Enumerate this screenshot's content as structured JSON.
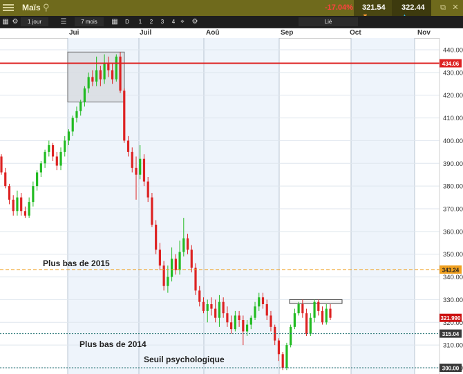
{
  "header": {
    "title": "Maïs",
    "search_icon": "search-icon",
    "change_pct": "-17.04%",
    "sell_price": "321.54",
    "buy_price": "322.44",
    "colors": {
      "bar": "#6f6a1c",
      "negative": "#ff4040"
    }
  },
  "toolbar": {
    "interval": "1 jour",
    "range": "7 mois",
    "btn_d": "D",
    "btn_1": "1",
    "btn_2": "2",
    "btn_3": "3",
    "btn_4": "4",
    "linked": "Lié"
  },
  "chart_data": {
    "type": "candlestick",
    "months": [
      "Jui",
      "Juil",
      "Aoû",
      "Sep",
      "Oct",
      "Nov"
    ],
    "y_ticks": [
      "440.00",
      "430.00",
      "420.00",
      "410.00",
      "400.00",
      "390.00",
      "380.00",
      "370.00",
      "360.00",
      "350.00",
      "340.00",
      "330.00",
      "320.00",
      "310.00",
      "300.00"
    ],
    "ylim": [
      298,
      442
    ],
    "grid": true,
    "colors": {
      "up": "#22bb22",
      "down": "#dd2222",
      "resistance": "#dd2222",
      "level_2015": "#f0a020",
      "support": "#207070"
    },
    "levels": [
      {
        "value": 434.06,
        "label": "434.06",
        "style": "resistance"
      },
      {
        "value": 343.24,
        "label": "343.24",
        "style": "level_2015"
      },
      {
        "value": 321.99,
        "label": "321.990",
        "style": "current"
      },
      {
        "value": 315.04,
        "label": "315.04",
        "style": "support"
      },
      {
        "value": 300.0,
        "label": "300.00",
        "style": "support"
      }
    ],
    "annotations": {
      "low_2015": "Plus bas de 2015",
      "low_2014": "Plus bas de 2014",
      "psych": "Seuil psychologique"
    },
    "candles": [
      [
        393,
        386,
        394,
        385
      ],
      [
        386,
        380,
        388,
        379
      ],
      [
        380,
        374,
        381,
        372
      ],
      [
        374,
        369,
        376,
        367
      ],
      [
        369,
        375,
        378,
        367
      ],
      [
        375,
        369,
        377,
        367
      ],
      [
        369,
        367,
        371,
        366
      ],
      [
        367,
        373,
        375,
        366
      ],
      [
        373,
        380,
        382,
        371
      ],
      [
        380,
        386,
        387,
        378
      ],
      [
        386,
        390,
        391,
        384
      ],
      [
        390,
        395,
        396,
        388
      ],
      [
        395,
        398,
        400,
        393
      ],
      [
        398,
        393,
        399,
        391
      ],
      [
        393,
        389,
        395,
        387
      ],
      [
        389,
        395,
        397,
        387
      ],
      [
        395,
        400,
        402,
        393
      ],
      [
        400,
        404,
        405,
        398
      ],
      [
        404,
        410,
        411,
        402
      ],
      [
        410,
        413,
        415,
        408
      ],
      [
        413,
        417,
        418,
        411
      ],
      [
        417,
        423,
        424,
        415
      ],
      [
        423,
        428,
        430,
        421
      ],
      [
        428,
        426,
        431,
        424
      ],
      [
        426,
        431,
        437,
        424
      ],
      [
        431,
        427,
        433,
        424
      ],
      [
        427,
        434,
        438,
        425
      ],
      [
        434,
        431,
        437,
        428
      ],
      [
        431,
        427,
        434,
        425
      ],
      [
        427,
        437,
        438,
        426
      ],
      [
        437,
        422,
        439,
        421
      ],
      [
        422,
        400,
        423,
        399
      ],
      [
        400,
        395,
        402,
        393
      ],
      [
        395,
        388,
        397,
        386
      ],
      [
        388,
        385,
        393,
        374
      ],
      [
        385,
        392,
        398,
        383
      ],
      [
        392,
        382,
        394,
        380
      ],
      [
        382,
        375,
        384,
        373
      ],
      [
        375,
        363,
        377,
        362
      ],
      [
        363,
        352,
        365,
        350
      ],
      [
        352,
        345,
        355,
        343
      ],
      [
        345,
        336,
        347,
        334
      ],
      [
        336,
        340,
        345,
        333
      ],
      [
        340,
        348,
        353,
        338
      ],
      [
        348,
        343,
        350,
        341
      ],
      [
        343,
        351,
        356,
        341
      ],
      [
        351,
        357,
        366,
        349
      ],
      [
        357,
        352,
        359,
        350
      ],
      [
        352,
        344,
        354,
        342
      ],
      [
        344,
        334,
        346,
        332
      ],
      [
        334,
        329,
        336,
        327
      ],
      [
        329,
        325,
        331,
        324
      ],
      [
        325,
        328,
        330,
        320
      ],
      [
        328,
        326,
        331,
        323
      ],
      [
        326,
        322,
        330,
        320
      ],
      [
        322,
        329,
        332,
        318
      ],
      [
        329,
        324,
        331,
        322
      ],
      [
        324,
        320,
        327,
        318
      ],
      [
        320,
        317,
        323,
        315
      ],
      [
        317,
        323,
        325,
        316
      ],
      [
        323,
        321,
        325,
        318
      ],
      [
        321,
        316,
        323,
        310
      ],
      [
        316,
        319,
        321,
        314
      ],
      [
        319,
        322,
        323,
        317
      ],
      [
        322,
        327,
        329,
        321
      ],
      [
        327,
        331,
        333,
        325
      ],
      [
        331,
        328,
        333,
        326
      ],
      [
        328,
        323,
        330,
        321
      ],
      [
        323,
        318,
        325,
        316
      ],
      [
        318,
        312,
        319,
        310
      ],
      [
        312,
        306,
        313,
        303
      ],
      [
        306,
        300,
        307,
        299
      ],
      [
        300,
        310,
        311,
        299
      ],
      [
        310,
        318,
        319,
        309
      ],
      [
        318,
        324,
        326,
        317
      ],
      [
        324,
        328,
        329,
        323
      ],
      [
        328,
        324,
        330,
        322
      ],
      [
        324,
        315,
        326,
        314
      ],
      [
        315,
        322,
        324,
        314
      ],
      [
        322,
        329,
        330,
        320
      ],
      [
        329,
        325,
        330,
        323
      ],
      [
        325,
        320,
        327,
        319
      ],
      [
        320,
        326,
        328,
        319
      ],
      [
        326,
        322,
        328,
        321
      ]
    ]
  }
}
